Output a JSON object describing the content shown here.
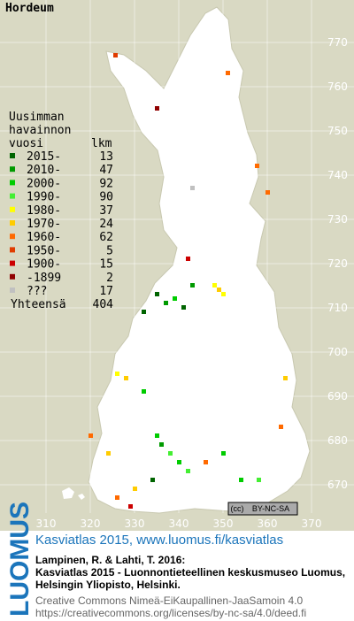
{
  "title": "Hordeum",
  "legend": {
    "heading": [
      "Uusimman",
      "havainnon",
      "vuosi"
    ],
    "count_heading": "lkm",
    "entries": [
      {
        "label": "2015-",
        "count": 13,
        "color": "#006400"
      },
      {
        "label": "2010-",
        "count": 47,
        "color": "#009a00"
      },
      {
        "label": "2000-",
        "count": 92,
        "color": "#00cc00"
      },
      {
        "label": "1990-",
        "count": 90,
        "color": "#44ee33"
      },
      {
        "label": "1980-",
        "count": 37,
        "color": "#ffff00"
      },
      {
        "label": "1970-",
        "count": 24,
        "color": "#ffcc00"
      },
      {
        "label": "1960-",
        "count": 62,
        "color": "#ff6a00"
      },
      {
        "label": "1950-",
        "count": 5,
        "color": "#e03c00"
      },
      {
        "label": "1900-",
        "count": 15,
        "color": "#cc0000"
      },
      {
        "label": "-1899",
        "count": 2,
        "color": "#900000"
      },
      {
        "label": "???",
        "count": 17,
        "color": "#c0c0c0"
      }
    ],
    "total_label": "Yhteensä",
    "total": 404
  },
  "grid": {
    "north": [
      770,
      760,
      750,
      740,
      730,
      720,
      710,
      700,
      690,
      680,
      670
    ],
    "east": [
      310,
      320,
      330,
      340,
      350,
      360,
      370
    ]
  },
  "license_badge": "BY-NC-SA",
  "footer": {
    "brand": "LUOMUS",
    "link": "Kasviatlas 2015, www.luomus.fi/kasviatlas",
    "citation": [
      "Lampinen, R. & Lahti, T. 2016:",
      "Kasviatlas 2015 - Luonnontieteellinen keskusmuseo Luomus,",
      "Helsingin Yliopisto, Helsinki."
    ],
    "license": [
      "Creative Commons Nimeä-EiKaupallinen-JaaSamoin 4.0",
      "https://creativecommons.org/licenses/by-nc-sa/4.0/deed.fi"
    ]
  }
}
